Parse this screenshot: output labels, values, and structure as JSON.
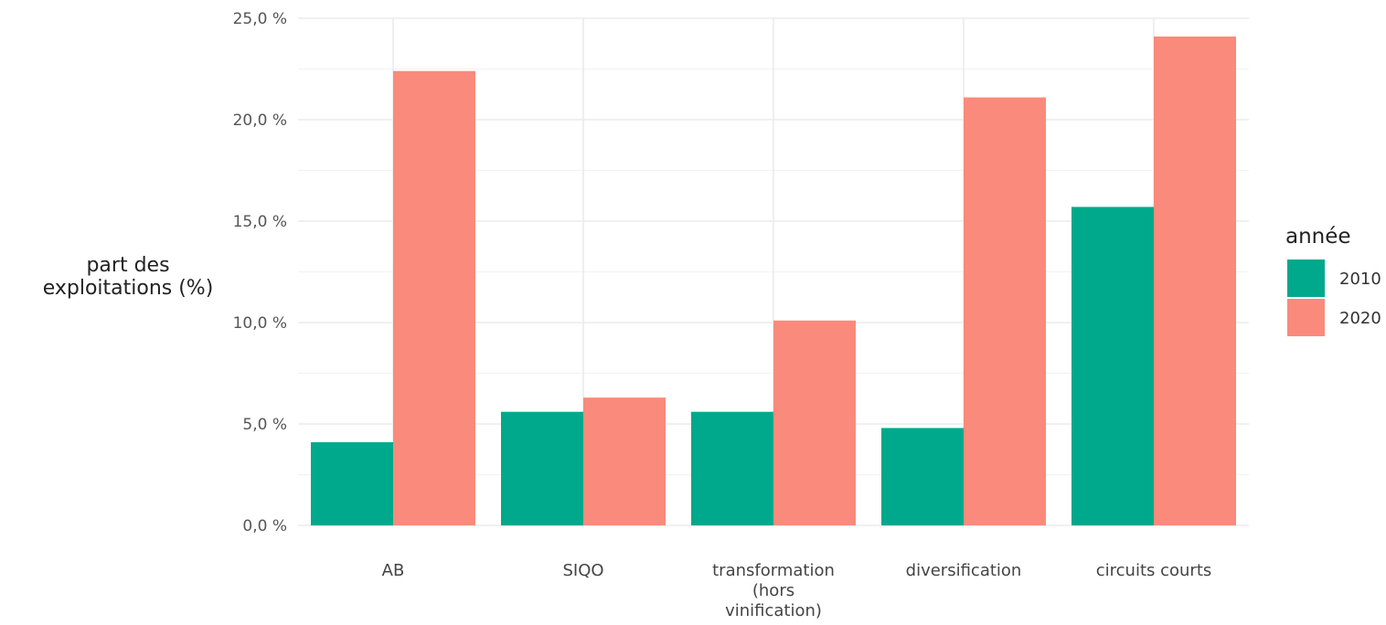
{
  "chart_data": {
    "type": "bar",
    "categories": [
      "AB",
      "SIQO",
      "transformation (hors vinification)",
      "diversification",
      "circuits courts"
    ],
    "category_labels": [
      [
        "AB"
      ],
      [
        "SIQO"
      ],
      [
        "transformation",
        "(hors",
        "vinification)"
      ],
      [
        "diversification"
      ],
      [
        "circuits courts"
      ]
    ],
    "series": [
      {
        "name": "2010",
        "values": [
          4.1,
          5.6,
          5.6,
          4.8,
          15.7
        ],
        "color": "#00A98B"
      },
      {
        "name": "2020",
        "values": [
          22.4,
          6.3,
          10.1,
          21.1,
          24.1
        ],
        "color": "#FA8A7B"
      }
    ],
    "xlabel": "",
    "ylabel_lines": [
      "part des",
      "exploitations (%)"
    ],
    "ylim": [
      0,
      25
    ],
    "yticks": [
      0,
      5,
      10,
      15,
      20,
      25
    ],
    "ytick_labels": [
      "0,0 %",
      "5,0 %",
      "10,0 %",
      "15,0 %",
      "20,0 %",
      "25,0 %"
    ],
    "grid": true,
    "legend_title": "année",
    "legend_position": "right",
    "grid_color": "#EBEBEB"
  }
}
